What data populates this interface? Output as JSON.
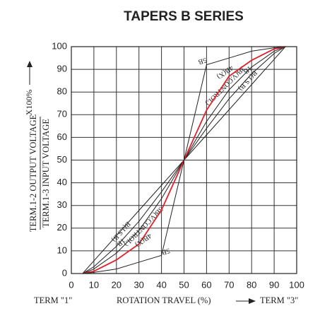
{
  "chart_data": {
    "type": "line",
    "title": "TAPERS B SERIES",
    "y_label_numerator": "TERM.1-2  OUTPUT VOLTAGE",
    "y_label_denominator": "TERM.1-3  INPUT VOLTAGE",
    "y_label_unit": "X100%",
    "x_label": "ROTATION  TRAVEL (%)",
    "x_label_left": "TERM \"1\"",
    "x_label_right": "TERM \"3\"",
    "x": [
      5,
      10,
      20,
      30,
      40,
      50,
      60,
      70,
      80,
      90,
      95
    ],
    "series": [
      {
        "name": "B(J.S.B)",
        "color": "#222222",
        "values": [
          0,
          5.6,
          16.7,
          27.8,
          38.9,
          50,
          61.1,
          72.2,
          83.3,
          94.4,
          100
        ]
      },
      {
        "name": "1B",
        "color": "#222222",
        "values": [
          0,
          3,
          12,
          23,
          36,
          50,
          64,
          77,
          88,
          97,
          100
        ]
      },
      {
        "name": "3B(V.CONTROL)",
        "color": "#222222",
        "values": [
          0,
          2,
          9,
          19,
          33,
          50,
          67,
          81,
          91,
          98,
          100
        ]
      },
      {
        "name": "4B(X)",
        "color": "#e0202a",
        "values": [
          0,
          1,
          6,
          13,
          28,
          50,
          72,
          87,
          94,
          99,
          100
        ]
      },
      {
        "name": "5B",
        "color": "#222222",
        "values": [
          0,
          0.5,
          2,
          5,
          8,
          50,
          92,
          95,
          98,
          99.5,
          100
        ]
      }
    ],
    "xlim": [
      0,
      100
    ],
    "ylim": [
      0,
      100
    ],
    "xticks": [
      0,
      10,
      20,
      30,
      40,
      50,
      60,
      70,
      80,
      90,
      100
    ],
    "yticks": [
      0,
      10,
      20,
      30,
      40,
      50,
      60,
      70,
      80,
      90,
      100
    ],
    "grid": true
  }
}
